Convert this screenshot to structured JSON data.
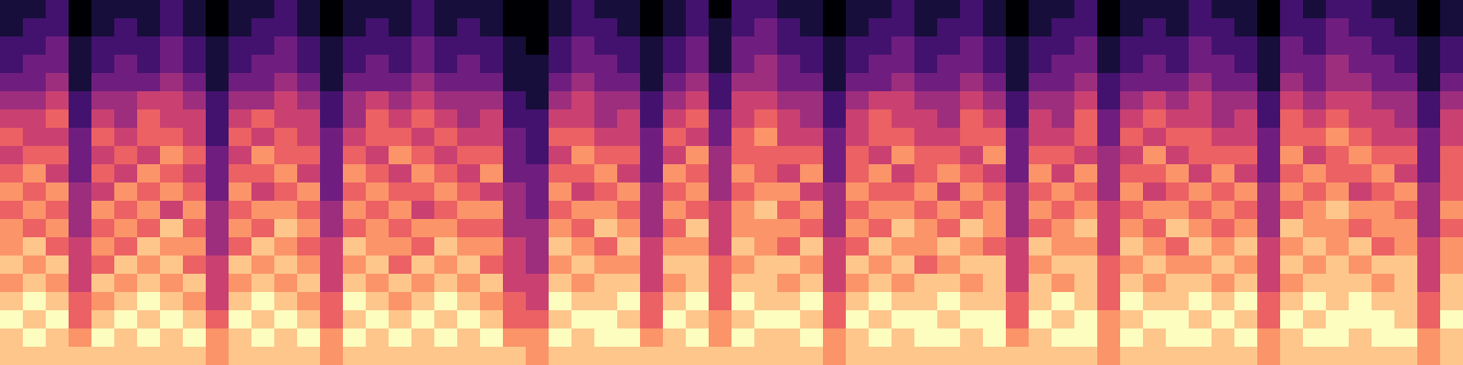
{
  "chart_data": {
    "type": "heatmap",
    "tick_labels": false,
    "zlim": [
      0,
      9
    ],
    "cells": [
      [
        1,
        1,
        2,
        0,
        1,
        1,
        1,
        2,
        1,
        0,
        1,
        1,
        2,
        1,
        0,
        1,
        1,
        1,
        2,
        1,
        1,
        1,
        0,
        0,
        1,
        2,
        1,
        1,
        0,
        1,
        2,
        0,
        2,
        2,
        1,
        1,
        0,
        1,
        1,
        2,
        1,
        1,
        2,
        1,
        0,
        1,
        1,
        2,
        0,
        1,
        1,
        1,
        2,
        1,
        1,
        0,
        2,
        1,
        2,
        2,
        1,
        1,
        0,
        1
      ],
      [
        1,
        2,
        2,
        0,
        1,
        2,
        1,
        2,
        1,
        0,
        1,
        2,
        2,
        1,
        0,
        1,
        2,
        1,
        2,
        1,
        2,
        1,
        0,
        0,
        1,
        2,
        2,
        1,
        0,
        1,
        2,
        1,
        2,
        3,
        2,
        1,
        0,
        1,
        2,
        2,
        1,
        2,
        2,
        1,
        0,
        1,
        2,
        2,
        0,
        1,
        2,
        1,
        2,
        2,
        1,
        0,
        2,
        2,
        3,
        2,
        2,
        1,
        0,
        1
      ],
      [
        2,
        2,
        3,
        1,
        2,
        2,
        2,
        3,
        2,
        1,
        2,
        2,
        3,
        2,
        1,
        2,
        2,
        2,
        3,
        2,
        2,
        2,
        1,
        0,
        2,
        3,
        2,
        2,
        1,
        2,
        3,
        1,
        3,
        3,
        2,
        2,
        1,
        2,
        2,
        3,
        2,
        2,
        3,
        2,
        1,
        2,
        2,
        3,
        1,
        2,
        2,
        2,
        3,
        2,
        2,
        1,
        3,
        2,
        3,
        3,
        2,
        2,
        1,
        2
      ],
      [
        2,
        3,
        3,
        1,
        2,
        3,
        2,
        3,
        2,
        1,
        2,
        3,
        3,
        2,
        1,
        2,
        3,
        2,
        3,
        2,
        3,
        2,
        1,
        1,
        2,
        3,
        3,
        2,
        1,
        2,
        3,
        1,
        3,
        4,
        3,
        2,
        1,
        2,
        3,
        3,
        2,
        3,
        3,
        2,
        1,
        2,
        3,
        3,
        1,
        2,
        3,
        2,
        3,
        3,
        2,
        1,
        3,
        3,
        4,
        3,
        3,
        2,
        1,
        2
      ],
      [
        3,
        3,
        4,
        1,
        3,
        3,
        3,
        4,
        3,
        1,
        3,
        3,
        4,
        3,
        1,
        3,
        3,
        3,
        4,
        3,
        3,
        3,
        1,
        1,
        3,
        4,
        3,
        3,
        1,
        3,
        4,
        2,
        4,
        4,
        3,
        3,
        1,
        3,
        3,
        4,
        3,
        3,
        4,
        3,
        1,
        3,
        3,
        4,
        2,
        3,
        3,
        3,
        4,
        3,
        3,
        1,
        4,
        3,
        4,
        4,
        3,
        3,
        1,
        3
      ],
      [
        4,
        4,
        5,
        2,
        4,
        4,
        5,
        5,
        4,
        2,
        4,
        4,
        5,
        4,
        2,
        4,
        5,
        4,
        5,
        4,
        4,
        4,
        2,
        1,
        4,
        5,
        4,
        4,
        2,
        4,
        5,
        2,
        5,
        5,
        4,
        4,
        2,
        4,
        5,
        5,
        4,
        4,
        5,
        4,
        2,
        4,
        4,
        5,
        2,
        4,
        5,
        4,
        5,
        4,
        4,
        2,
        5,
        4,
        5,
        5,
        4,
        4,
        2,
        4
      ],
      [
        5,
        5,
        6,
        2,
        5,
        4,
        6,
        5,
        5,
        2,
        5,
        6,
        5,
        5,
        2,
        4,
        6,
        5,
        6,
        5,
        4,
        5,
        2,
        2,
        5,
        5,
        4,
        5,
        2,
        5,
        6,
        3,
        5,
        6,
        5,
        4,
        2,
        5,
        6,
        5,
        5,
        4,
        6,
        5,
        2,
        5,
        4,
        6,
        3,
        5,
        6,
        5,
        5,
        4,
        5,
        2,
        6,
        5,
        6,
        5,
        5,
        4,
        2,
        5
      ],
      [
        6,
        5,
        5,
        3,
        6,
        5,
        6,
        6,
        5,
        2,
        6,
        5,
        6,
        5,
        3,
        5,
        6,
        6,
        5,
        6,
        5,
        5,
        3,
        2,
        6,
        6,
        5,
        5,
        3,
        6,
        5,
        3,
        6,
        7,
        5,
        5,
        3,
        5,
        6,
        6,
        5,
        5,
        6,
        6,
        3,
        5,
        5,
        6,
        3,
        6,
        5,
        6,
        6,
        5,
        5,
        3,
        6,
        6,
        7,
        6,
        5,
        5,
        3,
        5
      ],
      [
        5,
        6,
        6,
        3,
        5,
        6,
        5,
        7,
        6,
        3,
        5,
        7,
        6,
        6,
        3,
        6,
        5,
        7,
        6,
        5,
        6,
        6,
        3,
        2,
        5,
        7,
        6,
        6,
        3,
        5,
        7,
        4,
        6,
        6,
        6,
        6,
        3,
        6,
        5,
        7,
        6,
        6,
        5,
        7,
        3,
        6,
        6,
        5,
        4,
        5,
        7,
        5,
        6,
        6,
        6,
        3,
        7,
        5,
        6,
        7,
        6,
        6,
        3,
        6
      ],
      [
        6,
        7,
        5,
        3,
        6,
        5,
        7,
        6,
        5,
        3,
        6,
        6,
        7,
        5,
        3,
        7,
        6,
        5,
        7,
        6,
        5,
        7,
        3,
        3,
        6,
        6,
        7,
        5,
        3,
        7,
        6,
        4,
        7,
        6,
        5,
        7,
        3,
        6,
        7,
        5,
        6,
        7,
        6,
        5,
        3,
        7,
        5,
        7,
        4,
        6,
        6,
        7,
        5,
        7,
        5,
        3,
        6,
        7,
        6,
        6,
        7,
        5,
        3,
        6
      ],
      [
        7,
        6,
        7,
        4,
        5,
        7,
        6,
        7,
        6,
        3,
        7,
        5,
        6,
        7,
        3,
        6,
        7,
        6,
        6,
        7,
        6,
        5,
        4,
        3,
        7,
        5,
        6,
        7,
        4,
        6,
        7,
        4,
        6,
        7,
        7,
        5,
        4,
        7,
        6,
        6,
        7,
        5,
        7,
        6,
        4,
        6,
        7,
        6,
        4,
        7,
        5,
        6,
        7,
        6,
        7,
        4,
        7,
        6,
        7,
        5,
        6,
        7,
        4,
        6
      ],
      [
        6,
        7,
        6,
        4,
        7,
        6,
        7,
        5,
        7,
        4,
        6,
        7,
        7,
        6,
        4,
        7,
        6,
        7,
        5,
        6,
        7,
        7,
        4,
        3,
        6,
        7,
        7,
        6,
        4,
        7,
        6,
        5,
        7,
        8,
        6,
        7,
        4,
        6,
        7,
        7,
        6,
        7,
        6,
        7,
        4,
        7,
        6,
        7,
        5,
        6,
        7,
        7,
        6,
        7,
        6,
        4,
        6,
        7,
        8,
        7,
        7,
        6,
        4,
        7
      ],
      [
        7,
        6,
        7,
        4,
        6,
        7,
        6,
        8,
        6,
        4,
        7,
        6,
        8,
        7,
        4,
        6,
        7,
        6,
        7,
        7,
        6,
        6,
        4,
        4,
        7,
        6,
        8,
        7,
        4,
        6,
        8,
        5,
        7,
        7,
        7,
        6,
        4,
        7,
        6,
        8,
        7,
        6,
        8,
        7,
        4,
        6,
        7,
        8,
        5,
        7,
        6,
        8,
        7,
        6,
        7,
        4,
        8,
        7,
        7,
        6,
        7,
        7,
        4,
        6
      ],
      [
        7,
        8,
        6,
        5,
        7,
        6,
        8,
        7,
        7,
        4,
        6,
        8,
        7,
        6,
        5,
        8,
        7,
        7,
        6,
        8,
        7,
        7,
        5,
        4,
        8,
        7,
        6,
        8,
        5,
        7,
        7,
        5,
        8,
        7,
        6,
        8,
        5,
        6,
        8,
        7,
        7,
        8,
        7,
        6,
        5,
        8,
        7,
        7,
        5,
        8,
        7,
        6,
        8,
        7,
        8,
        5,
        7,
        8,
        7,
        8,
        6,
        7,
        5,
        7
      ],
      [
        8,
        7,
        8,
        5,
        6,
        8,
        7,
        8,
        6,
        5,
        8,
        7,
        8,
        7,
        5,
        7,
        8,
        6,
        8,
        7,
        8,
        6,
        5,
        4,
        7,
        8,
        7,
        7,
        5,
        8,
        8,
        6,
        7,
        8,
        8,
        7,
        5,
        8,
        7,
        8,
        6,
        7,
        8,
        8,
        5,
        7,
        8,
        8,
        6,
        7,
        8,
        7,
        7,
        8,
        7,
        5,
        8,
        7,
        8,
        7,
        8,
        8,
        5,
        7
      ],
      [
        7,
        8,
        7,
        5,
        8,
        7,
        8,
        7,
        8,
        5,
        7,
        8,
        7,
        8,
        5,
        8,
        7,
        8,
        7,
        8,
        7,
        8,
        5,
        5,
        8,
        7,
        8,
        8,
        5,
        7,
        8,
        6,
        8,
        8,
        7,
        8,
        5,
        7,
        8,
        7,
        8,
        8,
        7,
        8,
        5,
        8,
        7,
        8,
        6,
        8,
        7,
        8,
        8,
        7,
        8,
        5,
        7,
        8,
        8,
        8,
        7,
        8,
        5,
        8
      ],
      [
        8,
        9,
        8,
        6,
        7,
        8,
        9,
        8,
        7,
        5,
        8,
        9,
        8,
        7,
        6,
        9,
        8,
        7,
        8,
        9,
        8,
        7,
        6,
        5,
        9,
        8,
        8,
        9,
        6,
        8,
        9,
        6,
        9,
        8,
        8,
        9,
        6,
        8,
        9,
        8,
        8,
        9,
        8,
        8,
        6,
        8,
        9,
        8,
        6,
        9,
        8,
        8,
        9,
        8,
        9,
        6,
        8,
        9,
        8,
        9,
        8,
        8,
        6,
        8
      ],
      [
        9,
        8,
        9,
        6,
        8,
        9,
        8,
        9,
        8,
        6,
        9,
        8,
        9,
        8,
        6,
        8,
        9,
        8,
        9,
        8,
        9,
        8,
        6,
        6,
        8,
        9,
        9,
        8,
        6,
        9,
        8,
        7,
        8,
        9,
        9,
        8,
        6,
        9,
        8,
        9,
        9,
        8,
        9,
        9,
        6,
        9,
        8,
        9,
        7,
        8,
        9,
        9,
        8,
        9,
        8,
        6,
        9,
        8,
        9,
        9,
        9,
        8,
        6,
        9
      ],
      [
        8,
        9,
        8,
        7,
        9,
        8,
        9,
        8,
        9,
        7,
        8,
        9,
        8,
        9,
        7,
        9,
        8,
        9,
        8,
        9,
        8,
        9,
        7,
        7,
        9,
        8,
        9,
        9,
        7,
        8,
        9,
        7,
        9,
        8,
        8,
        9,
        7,
        8,
        9,
        8,
        9,
        9,
        8,
        9,
        7,
        8,
        9,
        9,
        7,
        9,
        8,
        9,
        9,
        8,
        9,
        7,
        8,
        9,
        9,
        8,
        9,
        9,
        7,
        8
      ],
      [
        8,
        8,
        8,
        8,
        8,
        8,
        8,
        8,
        8,
        7,
        8,
        8,
        8,
        8,
        7,
        8,
        8,
        8,
        8,
        8,
        8,
        8,
        8,
        7,
        8,
        8,
        8,
        8,
        8,
        8,
        8,
        8,
        8,
        8,
        8,
        8,
        7,
        8,
        8,
        8,
        8,
        8,
        8,
        8,
        8,
        8,
        8,
        8,
        7,
        8,
        8,
        8,
        8,
        8,
        8,
        7,
        8,
        8,
        8,
        8,
        8,
        8,
        7,
        8
      ]
    ]
  }
}
